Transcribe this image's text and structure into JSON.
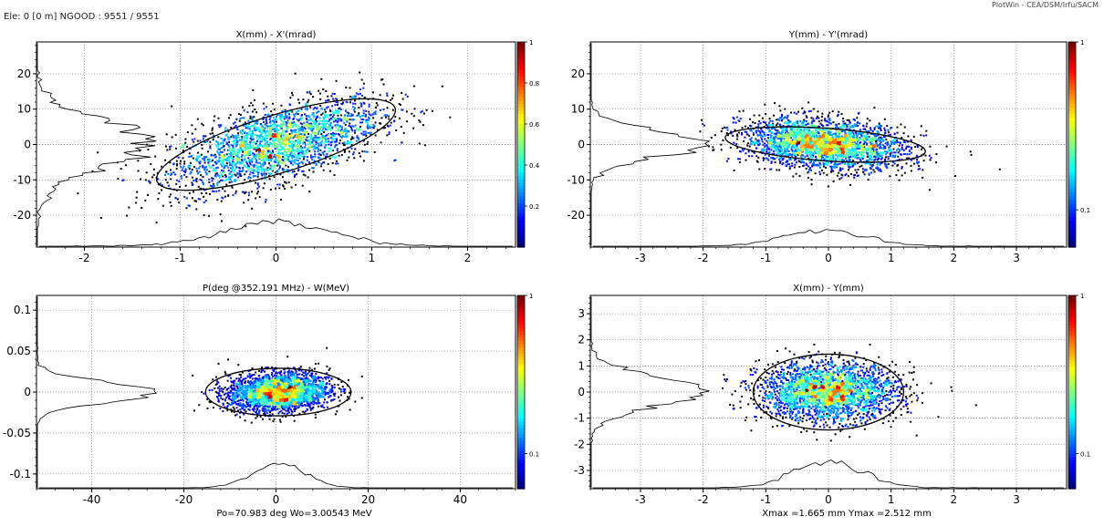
{
  "header": {
    "status": "Ele: 0 [0 m]    NGOOD : 9551 / 9551",
    "credit": "PlotWin - CEA/DSM/Irfu/SACM"
  },
  "colors": {
    "colormap": [
      "#000080",
      "#0000ff",
      "#0080ff",
      "#00ffff",
      "#80ff80",
      "#ffff00",
      "#ff8000",
      "#ff0000",
      "#800000"
    ],
    "ellipse": "#000000",
    "grid": "#808080"
  },
  "chart_data": [
    {
      "type": "heatmap",
      "title": "X(mm) - X'(mrad)",
      "xlabel": "",
      "ylabel": "",
      "xlim": [
        -2.5,
        2.5
      ],
      "ylim": [
        -29,
        29
      ],
      "xticks": [
        -2,
        -1,
        0,
        1,
        2
      ],
      "yticks": [
        -20,
        -10,
        0,
        10,
        20
      ],
      "grid": true,
      "colorbar": {
        "scale": "linear",
        "range": [
          0,
          1
        ],
        "ticks": [
          0.2,
          0.4,
          0.6,
          0.8,
          1
        ]
      },
      "distribution": {
        "cx": 0.0,
        "cy": 0.0,
        "sx": 0.55,
        "sy": 6.5,
        "corr": 0.6
      },
      "ellipse": {
        "cx": 0.0,
        "cy": 0.0,
        "rx": 1.3,
        "ry": 8.2,
        "angle_deg": 17
      },
      "x_profile_peak_y": -21,
      "y_profile_peak_x": -2.45,
      "footer": ""
    },
    {
      "type": "heatmap",
      "title": "Y(mm) - Y'(mrad)",
      "xlabel": "",
      "ylabel": "",
      "xlim": [
        -3.8,
        3.8
      ],
      "ylim": [
        -29,
        29
      ],
      "xticks": [
        -3,
        -2,
        -1,
        0,
        1,
        2,
        3
      ],
      "yticks": [
        -20,
        -10,
        0,
        10,
        20
      ],
      "grid": true,
      "colorbar": {
        "scale": "log",
        "range": [
          0.06,
          1
        ],
        "ticks": [
          0.1,
          1
        ]
      },
      "distribution": {
        "cx": -0.05,
        "cy": 0.0,
        "sx": 0.65,
        "sy": 3.6,
        "corr": -0.25
      },
      "ellipse": {
        "cx": -0.05,
        "cy": 0.0,
        "rx": 1.6,
        "ry": 4.6,
        "angle_deg": -4
      },
      "x_profile_peak_y": -24,
      "y_profile_peak_x": -3.7,
      "footer": ""
    },
    {
      "type": "heatmap",
      "title": "P(deg @352.191 MHz) - W(MeV)",
      "xlabel": "",
      "ylabel": "",
      "xlim": [
        -52,
        52
      ],
      "ylim": [
        -0.118,
        0.118
      ],
      "xticks": [
        -40,
        -20,
        0,
        20,
        40
      ],
      "yticks": [
        -0.1,
        -0.05,
        0,
        0.05,
        0.1
      ],
      "grid": true,
      "colorbar": {
        "scale": "log",
        "range": [
          0.06,
          1
        ],
        "ticks": [
          0.1,
          1
        ]
      },
      "distribution": {
        "cx": 0.5,
        "cy": 0.0,
        "sx": 5.5,
        "sy": 0.012,
        "corr": 0.12
      },
      "ellipse": {
        "cx": 0.5,
        "cy": 0.0,
        "rx": 15.8,
        "ry": 0.029,
        "angle_deg": 0
      },
      "x_profile_peak_y": -0.087,
      "y_profile_peak_x": -51,
      "footer": "Po=70.983 deg  Wo=3.00543 MeV"
    },
    {
      "type": "heatmap",
      "title": "X(mm) - Y(mm)",
      "xlabel": "",
      "ylabel": "",
      "xlim": [
        -3.8,
        3.8
      ],
      "ylim": [
        -3.7,
        3.7
      ],
      "xticks": [
        -3,
        -2,
        -1,
        0,
        1,
        2,
        3
      ],
      "yticks": [
        -3,
        -2,
        -1,
        0,
        1,
        2,
        3
      ],
      "grid": true,
      "colorbar": {
        "scale": "log",
        "range": [
          0.06,
          1
        ],
        "ticks": [
          0.1,
          1
        ]
      },
      "distribution": {
        "cx": 0.0,
        "cy": 0.0,
        "sx": 0.55,
        "sy": 0.55,
        "corr": 0.0
      },
      "ellipse": {
        "cx": 0.0,
        "cy": 0.0,
        "rx": 1.2,
        "ry": 1.45,
        "angle_deg": 0
      },
      "x_profile_peak_y": -2.6,
      "y_profile_peak_x": -3.7,
      "footer": "Xmax =1.665 mm  Ymax =2.512 mm"
    }
  ]
}
